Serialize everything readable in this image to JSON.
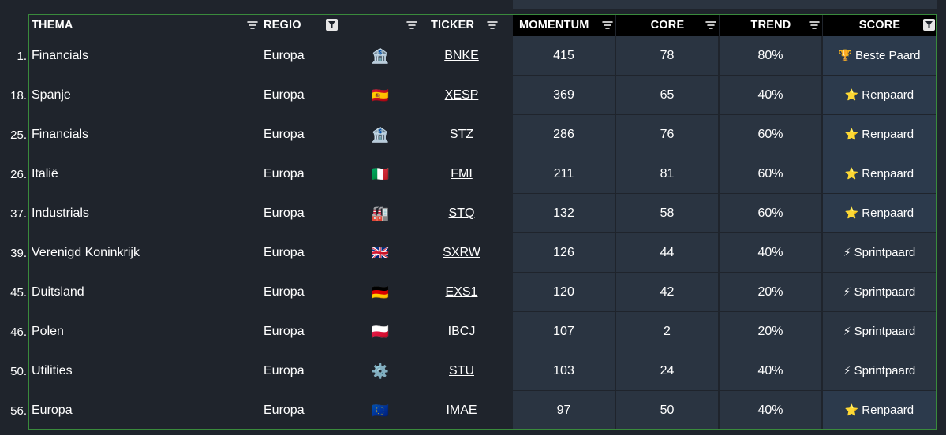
{
  "headers": {
    "thema": "THEMA",
    "regio": "REGIO",
    "ticker": "TICKER",
    "momentum": "MOMENTUM",
    "core": "CORE",
    "trend": "TREND",
    "score": "SCORE"
  },
  "colors": {
    "background": "#1f242c",
    "data_cell": "#2a3441",
    "score_highlight": "#2c3a4c",
    "header_dark": "#000000",
    "selection_border": "#3a8a3c"
  },
  "rows": [
    {
      "idx": "1.",
      "thema": "Financials",
      "regio": "Europa",
      "icon": "bank-icon",
      "glyph": "🏦",
      "ticker": "BNKE",
      "momentum": "415",
      "core": "78",
      "trend": "80%",
      "score_icon": "trophy-icon",
      "score_glyph": "🏆",
      "score": "Beste Paard",
      "highlight": true
    },
    {
      "idx": "18.",
      "thema": "Spanje",
      "regio": "Europa",
      "icon": "flag-spain-icon",
      "glyph": "🇪🇸",
      "ticker": "XESP",
      "momentum": "369",
      "core": "65",
      "trend": "40%",
      "score_icon": "star-icon",
      "score_glyph": "⭐",
      "score": "Renpaard",
      "highlight": true
    },
    {
      "idx": "25.",
      "thema": "Financials",
      "regio": "Europa",
      "icon": "bank-icon",
      "glyph": "🏦",
      "ticker": "STZ",
      "momentum": "286",
      "core": "76",
      "trend": "60%",
      "score_icon": "star-icon",
      "score_glyph": "⭐",
      "score": "Renpaard",
      "highlight": true
    },
    {
      "idx": "26.",
      "thema": "Italië",
      "regio": "Europa",
      "icon": "flag-italy-icon",
      "glyph": "🇮🇹",
      "ticker": "FMI",
      "momentum": "211",
      "core": "81",
      "trend": "60%",
      "score_icon": "star-icon",
      "score_glyph": "⭐",
      "score": "Renpaard",
      "highlight": true
    },
    {
      "idx": "37.",
      "thema": "Industrials",
      "regio": "Europa",
      "icon": "factory-icon",
      "glyph": "🏭",
      "ticker": "STQ",
      "momentum": "132",
      "core": "58",
      "trend": "60%",
      "score_icon": "star-icon",
      "score_glyph": "⭐",
      "score": "Renpaard",
      "highlight": true
    },
    {
      "idx": "39.",
      "thema": "Verenigd Koninkrijk",
      "regio": "Europa",
      "icon": "flag-uk-icon",
      "glyph": "🇬🇧",
      "ticker": "SXRW",
      "momentum": "126",
      "core": "44",
      "trend": "40%",
      "score_icon": "lightning-icon",
      "score_glyph": "⚡",
      "score": "Sprintpaard",
      "highlight": false
    },
    {
      "idx": "45.",
      "thema": "Duitsland",
      "regio": "Europa",
      "icon": "flag-germany-icon",
      "glyph": "🇩🇪",
      "ticker": "EXS1",
      "momentum": "120",
      "core": "42",
      "trend": "20%",
      "score_icon": "lightning-icon",
      "score_glyph": "⚡",
      "score": "Sprintpaard",
      "highlight": false
    },
    {
      "idx": "46.",
      "thema": "Polen",
      "regio": "Europa",
      "icon": "flag-poland-icon",
      "glyph": "🇵🇱",
      "ticker": "IBCJ",
      "momentum": "107",
      "core": "2",
      "trend": "20%",
      "score_icon": "lightning-icon",
      "score_glyph": "⚡",
      "score": "Sprintpaard",
      "highlight": false
    },
    {
      "idx": "50.",
      "thema": "Utilities",
      "regio": "Europa",
      "icon": "gear-icon",
      "glyph": "⚙️",
      "ticker": "STU",
      "momentum": "103",
      "core": "24",
      "trend": "40%",
      "score_icon": "lightning-icon",
      "score_glyph": "⚡",
      "score": "Sprintpaard",
      "highlight": false
    },
    {
      "idx": "56.",
      "thema": "Europa",
      "regio": "Europa",
      "icon": "flag-eu-icon",
      "glyph": "🇪🇺",
      "ticker": "IMAE",
      "momentum": "97",
      "core": "50",
      "trend": "40%",
      "score_icon": "star-icon",
      "score_glyph": "⭐",
      "score": "Renpaard",
      "highlight": true
    }
  ]
}
